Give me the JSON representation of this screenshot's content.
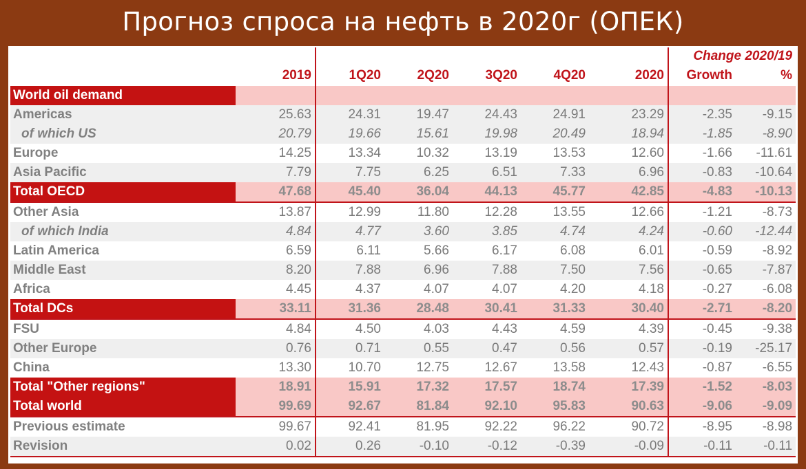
{
  "title": "Прогноз спроса на нефть в 2020г (ОПЕК)",
  "header": {
    "change_label": "Change 2020/19",
    "columns": [
      "2019",
      "1Q20",
      "2Q20",
      "3Q20",
      "4Q20",
      "2020",
      "Growth",
      "%"
    ]
  },
  "section_label": "World oil demand",
  "rows": [
    {
      "label": "Americas",
      "values": [
        "25.63",
        "24.31",
        "19.47",
        "24.43",
        "24.91",
        "23.29",
        "-2.35",
        "-9.15"
      ]
    },
    {
      "label": "of which US",
      "values": [
        "20.79",
        "19.66",
        "15.61",
        "19.98",
        "20.49",
        "18.94",
        "-1.85",
        "-8.90"
      ]
    },
    {
      "label": "Europe",
      "values": [
        "14.25",
        "13.34",
        "10.32",
        "13.19",
        "13.53",
        "12.60",
        "-1.66",
        "-11.61"
      ]
    },
    {
      "label": "Asia Pacific",
      "values": [
        "7.79",
        "7.75",
        "6.25",
        "6.51",
        "7.33",
        "6.96",
        "-0.83",
        "-10.64"
      ]
    },
    {
      "label": "Total OECD",
      "values": [
        "47.68",
        "45.40",
        "36.04",
        "44.13",
        "45.77",
        "42.85",
        "-4.83",
        "-10.13"
      ]
    },
    {
      "label": "Other Asia",
      "values": [
        "13.87",
        "12.99",
        "11.80",
        "12.28",
        "13.55",
        "12.66",
        "-1.21",
        "-8.73"
      ]
    },
    {
      "label": "of which India",
      "values": [
        "4.84",
        "4.77",
        "3.60",
        "3.85",
        "4.74",
        "4.24",
        "-0.60",
        "-12.44"
      ]
    },
    {
      "label": "Latin America",
      "values": [
        "6.59",
        "6.11",
        "5.66",
        "6.17",
        "6.08",
        "6.01",
        "-0.59",
        "-8.92"
      ]
    },
    {
      "label": "Middle East",
      "values": [
        "8.20",
        "7.88",
        "6.96",
        "7.88",
        "7.50",
        "7.56",
        "-0.65",
        "-7.87"
      ]
    },
    {
      "label": "Africa",
      "values": [
        "4.45",
        "4.37",
        "4.07",
        "4.07",
        "4.20",
        "4.18",
        "-0.27",
        "-6.08"
      ]
    },
    {
      "label": "Total DCs",
      "values": [
        "33.11",
        "31.36",
        "28.48",
        "30.41",
        "31.33",
        "30.40",
        "-2.71",
        "-8.20"
      ]
    },
    {
      "label": "FSU",
      "values": [
        "4.84",
        "4.50",
        "4.03",
        "4.43",
        "4.59",
        "4.39",
        "-0.45",
        "-9.38"
      ]
    },
    {
      "label": "Other Europe",
      "values": [
        "0.76",
        "0.71",
        "0.55",
        "0.47",
        "0.56",
        "0.57",
        "-0.19",
        "-25.17"
      ]
    },
    {
      "label": "China",
      "values": [
        "13.30",
        "10.70",
        "12.75",
        "12.67",
        "13.58",
        "12.43",
        "-0.87",
        "-6.55"
      ]
    },
    {
      "label": "Total \"Other regions\"",
      "values": [
        "18.91",
        "15.91",
        "17.32",
        "17.57",
        "18.74",
        "17.39",
        "-1.52",
        "-8.03"
      ]
    },
    {
      "label": "Total world",
      "values": [
        "99.69",
        "92.67",
        "81.84",
        "92.10",
        "95.83",
        "90.63",
        "-9.06",
        "-9.09"
      ]
    },
    {
      "label": "Previous estimate",
      "values": [
        "99.67",
        "92.41",
        "81.95",
        "92.22",
        "96.22",
        "90.72",
        "-8.95",
        "-8.98"
      ]
    },
    {
      "label": "Revision",
      "values": [
        "0.02",
        "0.26",
        "-0.10",
        "-0.12",
        "-0.39",
        "-0.09",
        "-0.11",
        "-0.11"
      ]
    }
  ],
  "colors": {
    "background": "#8b3a12",
    "accent_red": "#c41212",
    "total_fill": "#f9c8c6",
    "band_fill": "#efefef"
  }
}
